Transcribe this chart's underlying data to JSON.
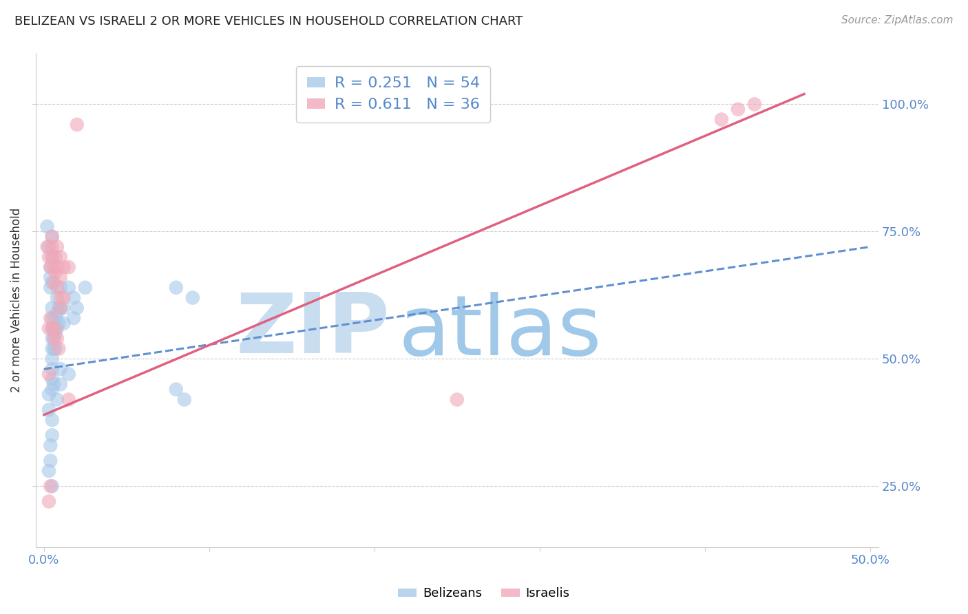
{
  "title": "BELIZEAN VS ISRAELI 2 OR MORE VEHICLES IN HOUSEHOLD CORRELATION CHART",
  "source": "Source: ZipAtlas.com",
  "ylabel": "2 or more Vehicles in Household",
  "xlim": [
    -0.005,
    0.505
  ],
  "ylim": [
    0.13,
    1.1
  ],
  "xticks": [
    0.0,
    0.1,
    0.2,
    0.3,
    0.4,
    0.5
  ],
  "xticklabels": [
    "0.0%",
    "",
    "",
    "",
    "",
    "50.0%"
  ],
  "yticks": [
    0.25,
    0.5,
    0.75,
    1.0
  ],
  "yticklabels": [
    "25.0%",
    "50.0%",
    "75.0%",
    "100.0%"
  ],
  "legend_R_blue": "0.251",
  "legend_N_blue": "54",
  "legend_R_pink": "0.611",
  "legend_N_pink": "36",
  "blue_color": "#a8c8e8",
  "pink_color": "#f0a8b8",
  "blue_line_color": "#6090d0",
  "pink_line_color": "#e06080",
  "watermark_zip": "ZIP",
  "watermark_atlas": "atlas",
  "watermark_color_zip": "#c8ddf0",
  "watermark_color_atlas": "#a0c8e8",
  "blue_points": [
    [
      0.002,
      0.76
    ],
    [
      0.003,
      0.72
    ],
    [
      0.004,
      0.68
    ],
    [
      0.004,
      0.66
    ],
    [
      0.004,
      0.64
    ],
    [
      0.005,
      0.74
    ],
    [
      0.005,
      0.7
    ],
    [
      0.005,
      0.65
    ],
    [
      0.005,
      0.6
    ],
    [
      0.005,
      0.58
    ],
    [
      0.005,
      0.56
    ],
    [
      0.005,
      0.54
    ],
    [
      0.005,
      0.52
    ],
    [
      0.005,
      0.5
    ],
    [
      0.005,
      0.48
    ],
    [
      0.005,
      0.46
    ],
    [
      0.005,
      0.44
    ],
    [
      0.006,
      0.56
    ],
    [
      0.006,
      0.54
    ],
    [
      0.006,
      0.52
    ],
    [
      0.007,
      0.58
    ],
    [
      0.007,
      0.55
    ],
    [
      0.007,
      0.52
    ],
    [
      0.008,
      0.62
    ],
    [
      0.008,
      0.59
    ],
    [
      0.008,
      0.56
    ],
    [
      0.009,
      0.6
    ],
    [
      0.009,
      0.57
    ],
    [
      0.01,
      0.64
    ],
    [
      0.01,
      0.6
    ],
    [
      0.012,
      0.6
    ],
    [
      0.012,
      0.57
    ],
    [
      0.015,
      0.64
    ],
    [
      0.018,
      0.62
    ],
    [
      0.018,
      0.58
    ],
    [
      0.02,
      0.6
    ],
    [
      0.025,
      0.64
    ],
    [
      0.003,
      0.43
    ],
    [
      0.003,
      0.4
    ],
    [
      0.005,
      0.38
    ],
    [
      0.005,
      0.35
    ],
    [
      0.006,
      0.45
    ],
    [
      0.008,
      0.42
    ],
    [
      0.004,
      0.33
    ],
    [
      0.004,
      0.3
    ],
    [
      0.01,
      0.48
    ],
    [
      0.01,
      0.45
    ],
    [
      0.015,
      0.47
    ],
    [
      0.003,
      0.28
    ],
    [
      0.005,
      0.25
    ],
    [
      0.08,
      0.64
    ],
    [
      0.09,
      0.62
    ],
    [
      0.08,
      0.44
    ],
    [
      0.085,
      0.42
    ]
  ],
  "pink_points": [
    [
      0.002,
      0.72
    ],
    [
      0.003,
      0.7
    ],
    [
      0.004,
      0.68
    ],
    [
      0.005,
      0.74
    ],
    [
      0.005,
      0.72
    ],
    [
      0.005,
      0.7
    ],
    [
      0.006,
      0.68
    ],
    [
      0.006,
      0.65
    ],
    [
      0.007,
      0.7
    ],
    [
      0.007,
      0.67
    ],
    [
      0.008,
      0.72
    ],
    [
      0.008,
      0.68
    ],
    [
      0.008,
      0.64
    ],
    [
      0.01,
      0.7
    ],
    [
      0.01,
      0.66
    ],
    [
      0.01,
      0.62
    ],
    [
      0.01,
      0.6
    ],
    [
      0.012,
      0.68
    ],
    [
      0.012,
      0.62
    ],
    [
      0.015,
      0.68
    ],
    [
      0.003,
      0.56
    ],
    [
      0.004,
      0.58
    ],
    [
      0.005,
      0.56
    ],
    [
      0.006,
      0.54
    ],
    [
      0.007,
      0.56
    ],
    [
      0.008,
      0.54
    ],
    [
      0.009,
      0.52
    ],
    [
      0.003,
      0.47
    ],
    [
      0.004,
      0.25
    ],
    [
      0.015,
      0.42
    ],
    [
      0.003,
      0.22
    ],
    [
      0.25,
      0.42
    ],
    [
      0.41,
      0.97
    ],
    [
      0.42,
      0.99
    ],
    [
      0.43,
      1.0
    ],
    [
      0.02,
      0.96
    ]
  ],
  "blue_line": {
    "x0": 0.0,
    "x1": 0.5,
    "y0": 0.48,
    "y1": 0.72
  },
  "pink_line": {
    "x0": 0.0,
    "x1": 0.46,
    "y0": 0.39,
    "y1": 1.02
  }
}
